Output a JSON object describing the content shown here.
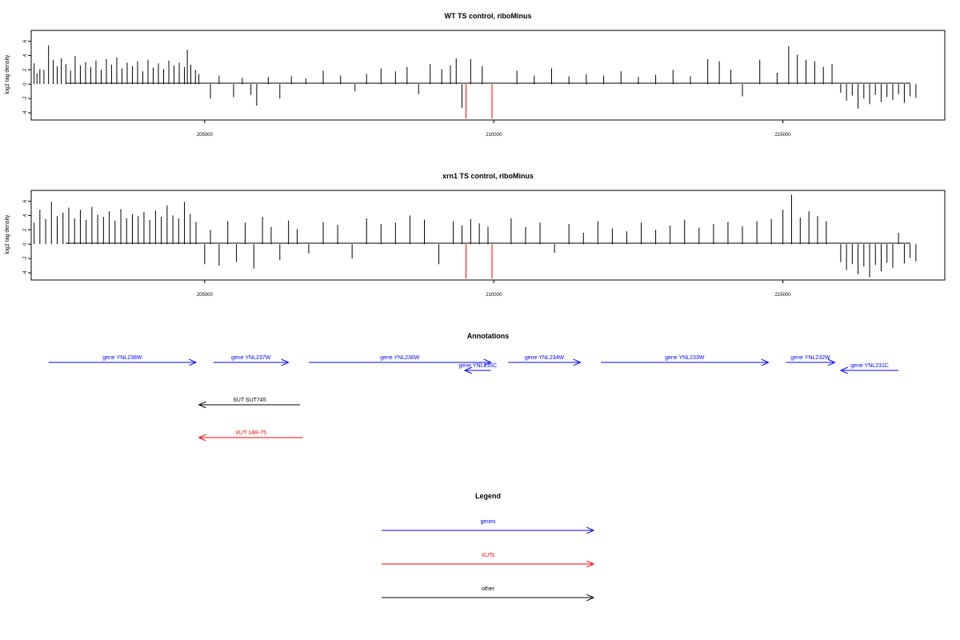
{
  "colors": {
    "genes": "#0000ff",
    "xuts": "#ff0000",
    "other": "#000000",
    "axis": "#000000"
  },
  "chart_data": [
    {
      "type": "bar",
      "title": "WT TS control, riboMinus",
      "ylabel": "log2 tag density",
      "xlim": [
        202000,
        217800
      ],
      "ylim": [
        -5,
        7.5
      ],
      "x_ticks": [
        205000,
        210000,
        215000
      ],
      "x_tick_labels": [
        "205000",
        "210000",
        "215000"
      ],
      "y_ticks": [
        -4,
        -2,
        0,
        2,
        4,
        6
      ],
      "y_tick_labels": [
        "-4",
        "-2",
        "0",
        "2",
        "4",
        "6"
      ],
      "series": [
        {
          "x": [
            202050,
            202100,
            202150,
            202220,
            202300,
            202380,
            202450,
            202520,
            202600,
            202680,
            202760,
            202850,
            202940,
            203030,
            203120,
            203210,
            203300,
            203390,
            203480,
            203570,
            203660,
            203750,
            203840,
            203930,
            204020,
            204110,
            204200,
            204290,
            204380,
            204470,
            204560,
            204650,
            204700,
            204760,
            204840,
            204900
          ],
          "values": [
            2.9,
            1.5,
            2.1,
            2.0,
            5.4,
            3.4,
            2.5,
            3.6,
            2.8,
            1.9,
            3.9,
            2.6,
            3.1,
            2.4,
            3.3,
            2.0,
            3.5,
            2.7,
            3.7,
            2.2,
            3.0,
            2.5,
            3.2,
            1.8,
            3.4,
            2.3,
            2.9,
            2.1,
            3.3,
            2.6,
            3.0,
            2.4,
            4.8,
            2.7,
            2.0,
            1.4
          ]
        },
        {
          "x": [
            205100,
            205250,
            205500,
            205650,
            205800,
            205900,
            206100,
            206300,
            206500,
            206750,
            207050,
            207350,
            207600,
            207800,
            208050,
            208300,
            208500,
            208700,
            208900,
            209100,
            209250,
            209350,
            209450,
            209600,
            209800
          ],
          "values": [
            -2.0,
            1.2,
            -1.8,
            0.9,
            -1.5,
            -3.0,
            1.0,
            -2.0,
            1.1,
            0.8,
            1.9,
            1.2,
            -1.0,
            1.4,
            2.2,
            1.8,
            2.4,
            -1.4,
            2.8,
            2.1,
            2.6,
            3.6,
            -3.3,
            3.5,
            2.5
          ]
        },
        {
          "x": [
            210400,
            210700,
            211000,
            211300,
            211600,
            211900,
            212200,
            212500,
            212800,
            213100,
            213400,
            213700,
            213900,
            214100,
            214300,
            214600,
            214900,
            215100,
            215250,
            215400,
            215550,
            215700,
            215850
          ],
          "values": [
            1.9,
            1.2,
            2.2,
            1.1,
            1.4,
            1.2,
            1.8,
            1.0,
            1.3,
            2.0,
            1.1,
            3.5,
            3.2,
            2.0,
            -1.7,
            3.4,
            1.6,
            5.3,
            4.1,
            3.4,
            3.2,
            2.4,
            2.8
          ]
        },
        {
          "x": [
            216000,
            216100,
            216200,
            216300,
            216400,
            216500,
            216600,
            216700,
            216800,
            216900,
            217000,
            217100,
            217200,
            217300
          ],
          "values": [
            -1.2,
            -2.3,
            -1.6,
            -3.4,
            -2.0,
            -2.8,
            -1.5,
            -2.5,
            -1.8,
            -2.2,
            -1.4,
            -2.6,
            -1.7,
            -1.9
          ]
        },
        {
          "name": "red",
          "x": [
            209520,
            209970
          ],
          "values": [
            -4.8,
            -4.8
          ]
        }
      ]
    },
    {
      "type": "bar",
      "title": "xrn1 TS control, riboMinus",
      "ylabel": "log2 tag density",
      "xlim": [
        202000,
        217800
      ],
      "ylim": [
        -5,
        7.5
      ],
      "x_ticks": [
        205000,
        210000,
        215000
      ],
      "x_tick_labels": [
        "205000",
        "210000",
        "215000"
      ],
      "y_ticks": [
        -4,
        -2,
        0,
        2,
        4,
        6
      ],
      "y_tick_labels": [
        "-4",
        "-2",
        "0",
        "2",
        "4",
        "6"
      ],
      "series": [
        {
          "x": [
            202050,
            202150,
            202250,
            202350,
            202450,
            202550,
            202650,
            202750,
            202850,
            202950,
            203050,
            203150,
            203250,
            203350,
            203450,
            203550,
            203650,
            203750,
            203850,
            203950,
            204050,
            204150,
            204250,
            204350,
            204450,
            204550,
            204650,
            204750,
            204850
          ],
          "values": [
            3.0,
            4.8,
            3.5,
            5.9,
            3.9,
            4.4,
            5.1,
            3.6,
            4.8,
            3.4,
            5.2,
            4.1,
            3.8,
            4.6,
            3.3,
            4.9,
            3.6,
            4.2,
            3.9,
            4.5,
            3.4,
            4.7,
            3.8,
            5.4,
            4.0,
            3.6,
            5.9,
            4.2,
            3.1
          ]
        },
        {
          "x": [
            205000,
            205100,
            205250,
            205400,
            205550,
            205700,
            205850,
            206000,
            206150,
            206300,
            206450,
            206600,
            206800,
            207050,
            207300,
            207550,
            207800,
            208050,
            208300,
            208550,
            208800,
            209050,
            209300,
            209450,
            209600,
            209750,
            209900
          ],
          "values": [
            -2.8,
            2.0,
            -3.0,
            3.2,
            -2.5,
            3.0,
            -3.4,
            3.8,
            2.4,
            -2.2,
            3.3,
            2.1,
            -1.3,
            3.1,
            2.7,
            -2.0,
            3.6,
            2.8,
            3.0,
            4.0,
            3.4,
            -2.8,
            3.2,
            2.6,
            3.5,
            2.9,
            2.4
          ]
        },
        {
          "x": [
            210300,
            210550,
            210800,
            211050,
            211300,
            211550,
            211800,
            212050,
            212300,
            212550,
            212800,
            213050,
            213300,
            213550,
            213800,
            214050,
            214300,
            214550,
            214800,
            215000,
            215150,
            215300,
            215450,
            215600,
            215750
          ],
          "values": [
            3.6,
            2.4,
            3.0,
            -1.2,
            2.8,
            1.6,
            3.2,
            2.2,
            1.8,
            3.0,
            2.0,
            2.6,
            3.4,
            2.3,
            2.8,
            3.1,
            2.5,
            3.2,
            3.5,
            4.8,
            6.9,
            3.7,
            4.6,
            3.9,
            3.2
          ]
        },
        {
          "x": [
            216000,
            216100,
            216200,
            216300,
            216400,
            216500,
            216600,
            216700,
            216800,
            216900,
            217000,
            217100,
            217200,
            217300
          ],
          "values": [
            -2.5,
            -3.6,
            -2.8,
            -4.2,
            -3.1,
            -4.6,
            -2.9,
            -3.8,
            -2.6,
            -3.3,
            1.6,
            -2.7,
            -1.9,
            -2.4
          ]
        },
        {
          "name": "red",
          "x": [
            209520,
            209970
          ],
          "values": [
            -4.8,
            -4.8
          ]
        }
      ]
    }
  ],
  "annotations": {
    "title": "Annotations",
    "xlim": [
      202000,
      217800
    ],
    "genes": [
      {
        "label": "gene YNL238W",
        "start": 202300,
        "end": 204850,
        "row": 0
      },
      {
        "label": "gene YNL237W",
        "start": 205150,
        "end": 206450,
        "row": 0
      },
      {
        "label": "gene YNL236W",
        "start": 206800,
        "end": 209950,
        "row": 0
      },
      {
        "label": "gene YNL235C",
        "start": 209950,
        "end": 209500,
        "row": 1
      },
      {
        "label": "gene YNL234W",
        "start": 210250,
        "end": 211500,
        "row": 0
      },
      {
        "label": "gene YNL233W",
        "start": 211850,
        "end": 214750,
        "row": 0
      },
      {
        "label": "gene YNL232W",
        "start": 215050,
        "end": 215900,
        "row": 0
      },
      {
        "label": "gene YNL231C",
        "start": 217000,
        "end": 216000,
        "row": 1
      }
    ],
    "other": [
      {
        "label": "SUT SUT745",
        "start": 206650,
        "end": 204900
      }
    ],
    "xuts": [
      {
        "label": "XUT 14R-75",
        "start": 206700,
        "end": 204900
      }
    ]
  },
  "legend": {
    "title": "Legend",
    "items": [
      {
        "label": "genes",
        "kind": "genes"
      },
      {
        "label": "XUTs",
        "kind": "xuts"
      },
      {
        "label": "other",
        "kind": "other"
      }
    ]
  }
}
